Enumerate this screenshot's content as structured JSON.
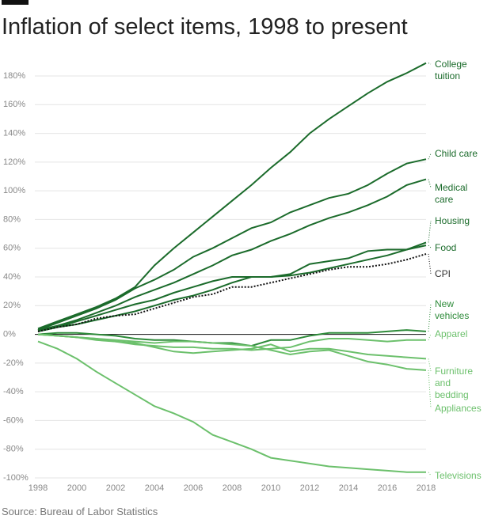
{
  "chart_data": {
    "type": "line",
    "title": "Inflation of select items, 1998 to present",
    "source": "Source: Bureau of Labor Statistics",
    "x": [
      1998,
      1999,
      2000,
      2001,
      2002,
      2003,
      2004,
      2005,
      2006,
      2007,
      2008,
      2009,
      2010,
      2011,
      2012,
      2013,
      2014,
      2015,
      2016,
      2017,
      2018
    ],
    "xlim": [
      1998,
      2018
    ],
    "xticks": [
      1998,
      2000,
      2002,
      2004,
      2006,
      2008,
      2010,
      2012,
      2014,
      2016,
      2018
    ],
    "ylim": [
      -100,
      180
    ],
    "yticks": [
      {
        "value": -100,
        "label": "-100%"
      },
      {
        "value": -80,
        "label": "-80%"
      },
      {
        "value": -60,
        "label": "-60%"
      },
      {
        "value": -40,
        "label": "-40%"
      },
      {
        "value": -20,
        "label": "-20%"
      },
      {
        "value": 0,
        "label": "0%"
      },
      {
        "value": 20,
        "label": "20%"
      },
      {
        "value": 40,
        "label": "40%"
      },
      {
        "value": 60,
        "label": "60%"
      },
      {
        "value": 80,
        "label": "80%"
      },
      {
        "value": 100,
        "label": "100%"
      },
      {
        "value": 120,
        "label": "120%"
      },
      {
        "value": 140,
        "label": "140%"
      },
      {
        "value": 160,
        "label": "160%"
      },
      {
        "value": 180,
        "label": "180%"
      }
    ],
    "grid": true,
    "series": [
      {
        "name": "College tuition",
        "color": "#1b6b2b",
        "values": [
          4,
          9,
          14,
          19,
          25,
          33,
          48,
          60,
          71,
          82,
          93,
          104,
          116,
          127,
          140,
          150,
          159,
          168,
          176,
          182,
          189
        ]
      },
      {
        "name": "Child care",
        "color": "#1b6b2b",
        "values": [
          3,
          8,
          13,
          18,
          24,
          32,
          38,
          45,
          54,
          60,
          67,
          74,
          78,
          85,
          90,
          95,
          98,
          104,
          112,
          119,
          122
        ]
      },
      {
        "name": "Medical care",
        "color": "#1b6b2b",
        "values": [
          3,
          6,
          10,
          15,
          20,
          26,
          31,
          36,
          42,
          48,
          55,
          59,
          65,
          70,
          76,
          81,
          85,
          90,
          96,
          104,
          108
        ]
      },
      {
        "name": "Housing",
        "color": "#1b6b2b",
        "values": [
          2,
          5,
          9,
          13,
          17,
          21,
          24,
          29,
          33,
          37,
          40,
          40,
          40,
          41,
          43,
          46,
          49,
          52,
          55,
          59,
          64
        ]
      },
      {
        "name": "Food",
        "color": "#1b6b2b",
        "values": [
          2,
          5,
          7,
          10,
          13,
          16,
          20,
          24,
          27,
          31,
          36,
          40,
          40,
          42,
          49,
          51,
          53,
          58,
          59,
          59,
          62
        ]
      },
      {
        "name": "CPI",
        "color": "#111111",
        "dashed": true,
        "values": [
          2,
          5,
          7,
          11,
          13,
          14,
          18,
          22,
          26,
          28,
          33,
          33,
          36,
          39,
          42,
          45,
          47,
          47,
          49,
          52,
          56
        ]
      },
      {
        "name": "New vehicles",
        "color": "#2e8b3a",
        "values": [
          0,
          1,
          1,
          0,
          -1,
          -3,
          -4,
          -4,
          -5,
          -6,
          -6,
          -8,
          -4,
          -4,
          -1,
          1,
          1,
          1,
          2,
          3,
          2
        ]
      },
      {
        "name": "Apparel",
        "color": "#6cc06c",
        "values": [
          0,
          -1,
          -2,
          -4,
          -5,
          -7,
          -8,
          -9,
          -9,
          -10,
          -10,
          -11,
          -10,
          -9,
          -5,
          -3,
          -3,
          -4,
          -5,
          -4,
          -4
        ]
      },
      {
        "name": "Furniture and bedding",
        "color": "#6cc06c",
        "values": [
          0,
          -1,
          -2,
          -3,
          -5,
          -6,
          -9,
          -12,
          -13,
          -12,
          -11,
          -10,
          -7,
          -12,
          -10,
          -10,
          -12,
          -14,
          -15,
          -16,
          -17
        ]
      },
      {
        "name": "Appliances",
        "color": "#6cc06c",
        "values": [
          0,
          -1,
          -2,
          -3,
          -4,
          -5,
          -6,
          -5,
          -5,
          -6,
          -7,
          -8,
          -11,
          -14,
          -12,
          -11,
          -15,
          -19,
          -21,
          -24,
          -25
        ]
      },
      {
        "name": "Televisions",
        "color": "#6cc06c",
        "values": [
          -5,
          -10,
          -17,
          -26,
          -34,
          -42,
          -50,
          -55,
          -61,
          -70,
          -75,
          -80,
          -86,
          -88,
          -90,
          -92,
          -93,
          -94,
          -95,
          -96,
          -96
        ]
      }
    ]
  }
}
